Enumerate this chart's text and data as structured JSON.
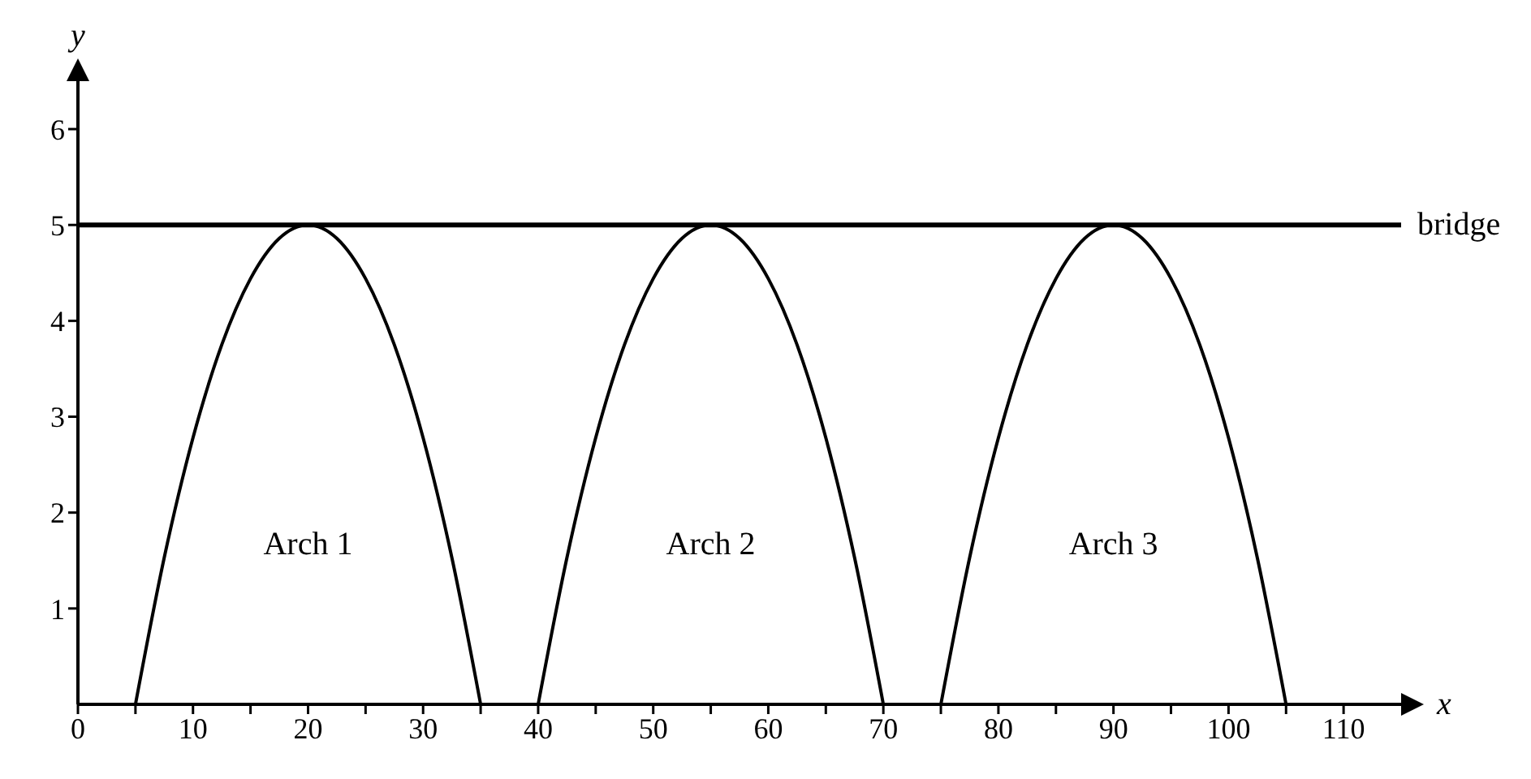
{
  "chart_data": {
    "type": "line",
    "xlabel": "x",
    "ylabel": "y",
    "xlim": [
      0,
      115
    ],
    "ylim": [
      0,
      6.5
    ],
    "xticks": [
      0,
      {
        "value": 5,
        "label": null
      },
      10,
      {
        "value": 15,
        "label": null
      },
      20,
      {
        "value": 25,
        "label": null
      },
      30,
      {
        "value": 35,
        "label": null
      },
      40,
      {
        "value": 45,
        "label": null
      },
      50,
      {
        "value": 55,
        "label": null
      },
      60,
      {
        "value": 65,
        "label": null
      },
      70,
      {
        "value": 75,
        "label": null
      },
      80,
      {
        "value": 85,
        "label": null
      },
      90,
      {
        "value": 95,
        "label": null
      },
      100,
      {
        "value": 105,
        "label": null
      },
      110
    ],
    "yticks": [
      1,
      2,
      3,
      4,
      5,
      6
    ],
    "series": [
      {
        "color": "#000000",
        "x": [
          5,
          7.5,
          10,
          12.5,
          15,
          17.5,
          20,
          22.5,
          25,
          27.5,
          30,
          32.5,
          35
        ],
        "values": [
          0,
          1.53,
          2.78,
          3.75,
          4.44,
          4.86,
          5,
          4.86,
          4.44,
          3.75,
          2.78,
          1.53,
          0
        ]
      },
      {
        "color": "#000000",
        "x": [
          40,
          42.5,
          45,
          47.5,
          50,
          52.5,
          55,
          57.5,
          60,
          62.5,
          65,
          67.5,
          70
        ],
        "values": [
          0,
          1.53,
          2.78,
          3.75,
          4.44,
          4.86,
          5,
          4.86,
          4.44,
          3.75,
          2.78,
          1.53,
          0
        ]
      },
      {
        "color": "#000000",
        "x": [
          75,
          77.5,
          80,
          82.5,
          85,
          87.5,
          90,
          92.5,
          95,
          97.5,
          100,
          102.5,
          105
        ],
        "values": [
          0,
          1.53,
          2.78,
          3.75,
          4.44,
          4.86,
          5,
          4.86,
          4.44,
          3.75,
          2.78,
          1.53,
          0
        ]
      }
    ],
    "ref_lines": [
      {
        "axis": "y",
        "value": 5,
        "label": "bridge",
        "color": "#000000"
      }
    ],
    "annotations": [
      "Arch 1",
      "Arch 2",
      "Arch 3"
    ],
    "marker": "none",
    "grid": false,
    "legend": false
  }
}
